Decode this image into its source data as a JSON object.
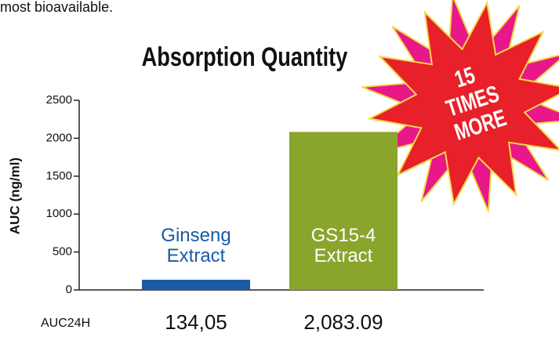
{
  "header_text": "most bioavailable.",
  "chart_data": {
    "type": "bar",
    "title": "Absorption Quantity",
    "y_label": "AUC (ng/ml)",
    "categories": [
      "Ginseng Extract",
      "GS15-4 Extract"
    ],
    "values": [
      134.05,
      2083.09
    ],
    "value_labels": [
      "134,05",
      "2,083.09"
    ],
    "colors": [
      "#1a5aa6",
      "#8aa52c"
    ],
    "row_label": "AUC24H",
    "annotation": "15 TIMES MORE",
    "ylim": [
      0,
      2500
    ],
    "yticks": [
      0,
      500,
      1000,
      1500,
      2000,
      2500
    ],
    "grid": false
  }
}
